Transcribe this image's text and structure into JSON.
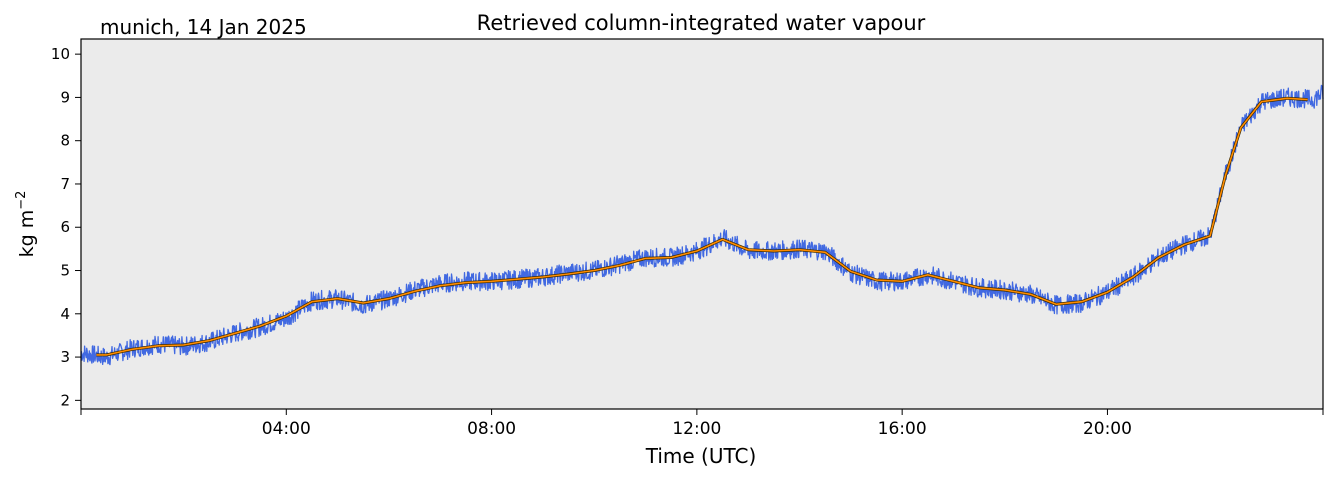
{
  "chart_data": {
    "type": "line",
    "title": "Retrieved column-integrated water vapour",
    "subtitle": "munich, 14 Jan 2025",
    "xlabel": "Time (UTC)",
    "ylabel": "kg m",
    "ylabel_superscript": "−2",
    "x_range_hours": [
      0,
      24.2
    ],
    "ylim": [
      1.8,
      10.35
    ],
    "yticks": [
      2,
      3,
      4,
      5,
      6,
      7,
      8,
      9,
      10
    ],
    "xticks": [
      {
        "hour": 4,
        "label": "04:00"
      },
      {
        "hour": 8,
        "label": "08:00"
      },
      {
        "hour": 12,
        "label": "12:00"
      },
      {
        "hour": 16,
        "label": "16:00"
      },
      {
        "hour": 20,
        "label": "20:00"
      }
    ],
    "grid": false,
    "legend": "none",
    "colors": {
      "background": "#ebebeb",
      "raw_series": "#4169e1",
      "smoothed_series": "#ff8c00"
    },
    "series_raw": {
      "noise_amplitude": 0.22,
      "x_hours": [
        0.0,
        0.5,
        1.0,
        1.5,
        2.0,
        2.5,
        3.0,
        3.5,
        4.0,
        4.5,
        5.0,
        5.5,
        6.0,
        6.5,
        7.0,
        7.5,
        8.0,
        8.5,
        9.0,
        9.5,
        10.0,
        10.5,
        11.0,
        11.5,
        12.0,
        12.5,
        13.0,
        13.5,
        14.0,
        14.5,
        15.0,
        15.5,
        16.0,
        16.5,
        17.0,
        17.5,
        18.0,
        18.5,
        19.0,
        19.5,
        20.0,
        20.5,
        21.0,
        21.5,
        22.0,
        22.3,
        22.6,
        23.0,
        23.5,
        24.0,
        24.2
      ],
      "y": [
        3.1,
        3.0,
        3.2,
        3.3,
        3.25,
        3.35,
        3.55,
        3.7,
        3.9,
        4.3,
        4.35,
        4.2,
        4.35,
        4.55,
        4.7,
        4.75,
        4.75,
        4.8,
        4.85,
        4.95,
        5.0,
        5.15,
        5.3,
        5.3,
        5.45,
        5.75,
        5.45,
        5.45,
        5.5,
        5.45,
        4.95,
        4.75,
        4.75,
        4.9,
        4.75,
        4.6,
        4.55,
        4.45,
        4.2,
        4.25,
        4.5,
        4.85,
        5.3,
        5.6,
        5.8,
        7.2,
        8.3,
        8.9,
        9.0,
        8.95,
        9.1
      ]
    },
    "series_smoothed": {
      "x_hours": [
        0.3,
        0.5,
        1.0,
        1.5,
        2.0,
        2.5,
        3.0,
        3.5,
        4.0,
        4.5,
        5.0,
        5.5,
        6.0,
        6.5,
        7.0,
        7.5,
        8.0,
        8.5,
        9.0,
        9.5,
        10.0,
        10.5,
        11.0,
        11.5,
        12.0,
        12.5,
        13.0,
        13.5,
        14.0,
        14.5,
        15.0,
        15.5,
        16.0,
        16.5,
        17.0,
        17.5,
        18.0,
        18.5,
        19.0,
        19.5,
        20.0,
        20.5,
        21.0,
        21.5,
        22.0,
        22.3,
        22.6,
        23.0,
        23.5,
        23.9
      ],
      "y": [
        3.05,
        3.05,
        3.18,
        3.26,
        3.28,
        3.38,
        3.55,
        3.72,
        3.95,
        4.28,
        4.35,
        4.25,
        4.35,
        4.52,
        4.65,
        4.72,
        4.75,
        4.8,
        4.85,
        4.92,
        5.0,
        5.12,
        5.28,
        5.3,
        5.45,
        5.72,
        5.48,
        5.45,
        5.48,
        5.42,
        4.98,
        4.78,
        4.75,
        4.9,
        4.75,
        4.6,
        4.55,
        4.45,
        4.22,
        4.28,
        4.5,
        4.85,
        5.3,
        5.6,
        5.8,
        7.2,
        8.3,
        8.9,
        8.98,
        8.95
      ]
    }
  }
}
